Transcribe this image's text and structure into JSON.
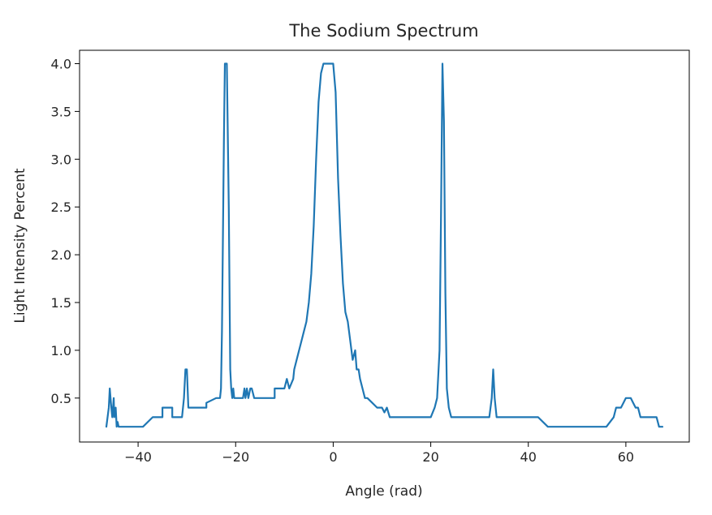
{
  "chart_data": {
    "type": "line",
    "title": "The Sodium Spectrum",
    "xlabel": "Angle (rad)",
    "ylabel": "Light Intensity Percent",
    "xlim": [
      -52,
      73
    ],
    "ylim": [
      0.04,
      4.14
    ],
    "xticks": [
      -40,
      -20,
      0,
      20,
      40,
      60
    ],
    "xtick_labels": [
      "−40",
      "−20",
      "0",
      "20",
      "40",
      "60"
    ],
    "yticks": [
      0.5,
      1.0,
      1.5,
      2.0,
      2.5,
      3.0,
      3.5,
      4.0
    ],
    "ytick_labels": [
      "0.5",
      "1.0",
      "1.5",
      "2.0",
      "2.5",
      "3.0",
      "3.5",
      "4.0"
    ],
    "grid": false,
    "line_color": "#1f77b4",
    "series": [
      {
        "x": [
          -46.5,
          -46,
          -45.8,
          -45.5,
          -45.3,
          -45.0,
          -44.9,
          -44.6,
          -44.4,
          -44.2,
          -44.0,
          -43.7,
          -43.3,
          -42.8,
          -41.0,
          -39.0,
          -37.0,
          -37.0,
          -35.0,
          -35.0,
          -33.0,
          -33.0,
          -31.0,
          -30.6,
          -30.3,
          -30.0,
          -29.7,
          -29.3,
          -29.0,
          -26.0,
          -26.0,
          -24.0,
          -23.2,
          -23.0,
          -22.8,
          -22.4,
          -22.2,
          -21.8,
          -21.4,
          -21.1,
          -20.9,
          -20.7,
          -20.5,
          -20.3,
          -19.5,
          -18.5,
          -18.2,
          -18.0,
          -17.7,
          -17.4,
          -17.0,
          -16.7,
          -16.2,
          -15.9,
          -15.5,
          -14.0,
          -12.0,
          -12.0,
          -10.0,
          -9.5,
          -9.0,
          -8.2,
          -8.0,
          -7.5,
          -7.0,
          -6.5,
          -6.0,
          -5.5,
          -5.0,
          -4.5,
          -4.0,
          -3.5,
          -3.0,
          -2.5,
          -2.0,
          -1.5,
          -1.2,
          -1.0,
          -0.5,
          0,
          0.5,
          1.0,
          1.5,
          2.0,
          2.5,
          3.0,
          3.5,
          4.0,
          4.5,
          4.8,
          5.2,
          5.5,
          6.0,
          6.5,
          7.0,
          8.0,
          9.0,
          9.5,
          10.0,
          10.5,
          11.0,
          11.3,
          11.6,
          12.0,
          14.0,
          16.0,
          18.0,
          19.0,
          20.0,
          20.8,
          21.3,
          21.8,
          22.1,
          22.4,
          22.7,
          23.0,
          23.3,
          23.7,
          24.2,
          25.0,
          27.0,
          30.0,
          32.0,
          32.5,
          32.8,
          33.1,
          33.5,
          34.0,
          35.0,
          38.0,
          42.0,
          44.0,
          48.0,
          52.0,
          56.0,
          57.5,
          58.0,
          58.5,
          59.0,
          59.5,
          60.0,
          60.5,
          61.0,
          61.5,
          62.0,
          62.5,
          63.0,
          64.0,
          65.0,
          66.0,
          66.3,
          66.8,
          67.5
        ],
        "y": [
          0.2,
          0.4,
          0.6,
          0.4,
          0.3,
          0.5,
          0.3,
          0.4,
          0.2,
          0.25,
          0.2,
          0.2,
          0.2,
          0.2,
          0.2,
          0.2,
          0.3,
          0.3,
          0.3,
          0.4,
          0.4,
          0.3,
          0.3,
          0.5,
          0.8,
          0.8,
          0.4,
          0.4,
          0.4,
          0.4,
          0.45,
          0.5,
          0.5,
          0.6,
          1.2,
          3.2,
          4.0,
          4.0,
          2.5,
          0.8,
          0.6,
          0.5,
          0.6,
          0.5,
          0.5,
          0.5,
          0.6,
          0.5,
          0.6,
          0.5,
          0.6,
          0.6,
          0.5,
          0.5,
          0.5,
          0.5,
          0.5,
          0.6,
          0.6,
          0.7,
          0.6,
          0.7,
          0.8,
          0.9,
          1.0,
          1.1,
          1.2,
          1.3,
          1.5,
          1.8,
          2.3,
          3.0,
          3.6,
          3.9,
          4.0,
          4.0,
          4.0,
          4.0,
          4.0,
          4.0,
          3.7,
          2.8,
          2.2,
          1.7,
          1.4,
          1.3,
          1.1,
          0.9,
          1.0,
          0.8,
          0.8,
          0.7,
          0.6,
          0.5,
          0.5,
          0.45,
          0.4,
          0.4,
          0.4,
          0.35,
          0.4,
          0.35,
          0.3,
          0.3,
          0.3,
          0.3,
          0.3,
          0.3,
          0.3,
          0.4,
          0.5,
          1.0,
          2.4,
          4.0,
          3.4,
          1.6,
          0.6,
          0.4,
          0.3,
          0.3,
          0.3,
          0.3,
          0.3,
          0.5,
          0.8,
          0.5,
          0.3,
          0.3,
          0.3,
          0.3,
          0.3,
          0.2,
          0.2,
          0.2,
          0.2,
          0.3,
          0.4,
          0.4,
          0.4,
          0.45,
          0.5,
          0.5,
          0.5,
          0.45,
          0.4,
          0.4,
          0.3,
          0.3,
          0.3,
          0.3,
          0.3,
          0.2,
          0.2
        ]
      }
    ]
  }
}
